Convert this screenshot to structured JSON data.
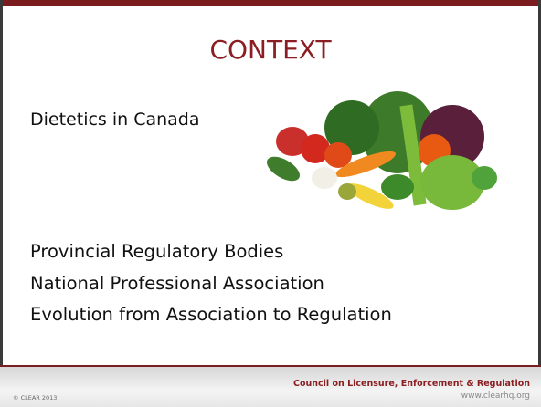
{
  "slide": {
    "title": "CONTEXT",
    "subtitle": "Dietetics in Canada",
    "items": [
      "Provincial Regulatory Bodies",
      "National Professional Association",
      "Evolution from Association to Regulation"
    ],
    "footer": {
      "copyright": "© CLEAR 2013",
      "organization": "Council on Licensure, Enforcement & Regulation",
      "website": "www.clearhq.org"
    }
  }
}
